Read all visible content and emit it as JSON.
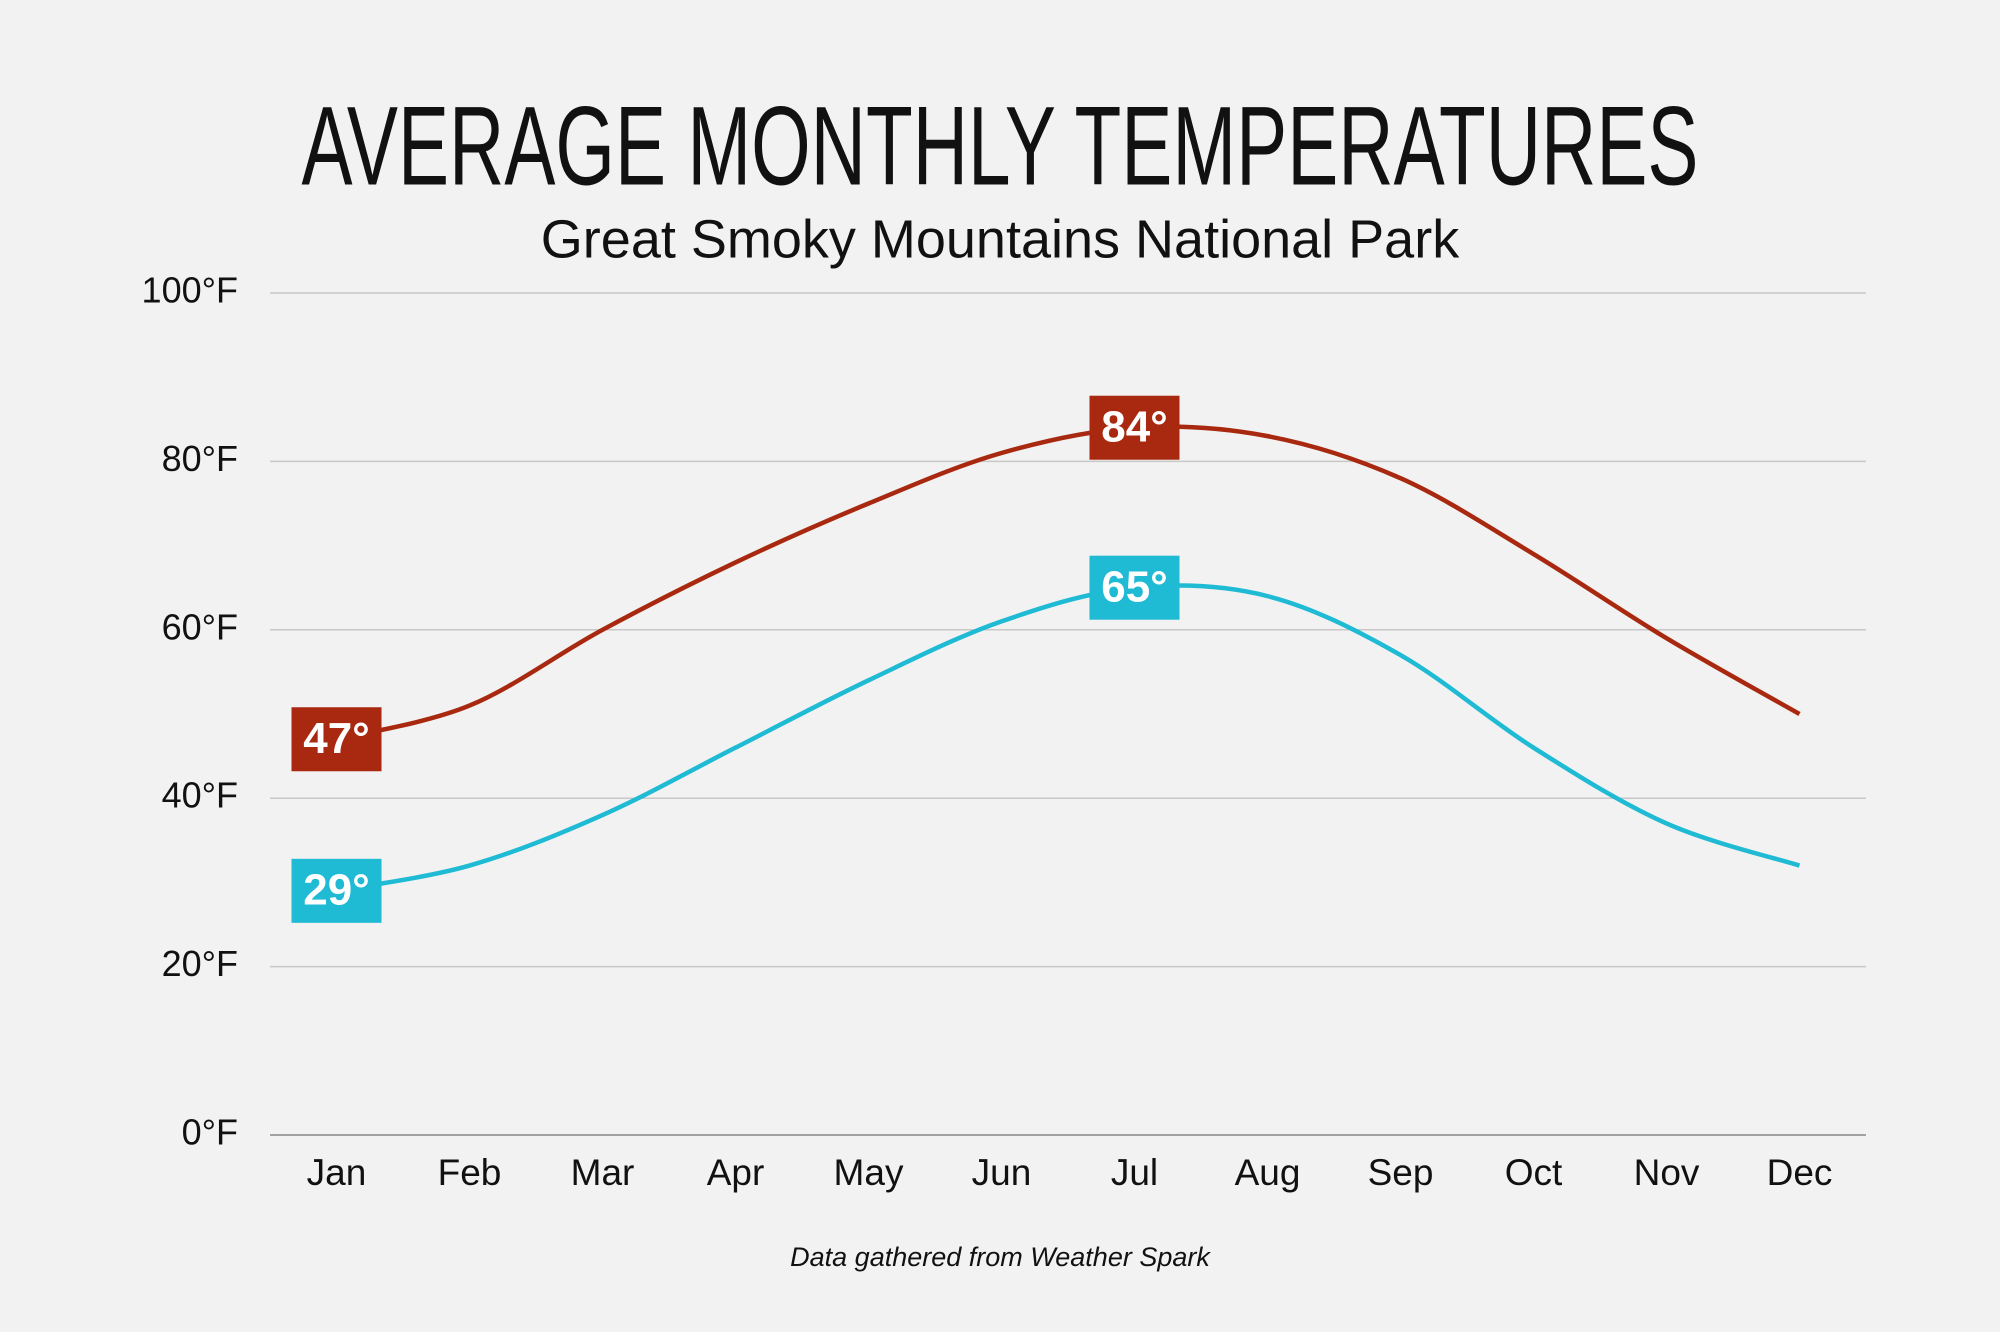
{
  "chart_data": {
    "type": "line",
    "title": "AVERAGE MONTHLY TEMPERATURES",
    "subtitle": "Great Smoky Mountains National Park",
    "footnote": "Data gathered from Weather Spark",
    "categories": [
      "Jan",
      "Feb",
      "Mar",
      "Apr",
      "May",
      "Jun",
      "Jul",
      "Aug",
      "Sep",
      "Oct",
      "Nov",
      "Dec"
    ],
    "series": [
      {
        "color": "#a8290f",
        "values": [
          47,
          51,
          60,
          68,
          75,
          81,
          84,
          83,
          78,
          69,
          59,
          50
        ],
        "value_labels": [
          "47°",
          null,
          null,
          null,
          null,
          null,
          "84°",
          null,
          null,
          null,
          null,
          null
        ]
      },
      {
        "color": "#1fbad3",
        "values": [
          29,
          32,
          38,
          46,
          54,
          61,
          65,
          64,
          57,
          46,
          37,
          32
        ],
        "value_labels": [
          "29°",
          null,
          null,
          null,
          null,
          null,
          "65°",
          null,
          null,
          null,
          null,
          null
        ]
      }
    ],
    "ylim": [
      0,
      100
    ],
    "yticks": [
      {
        "value": 0,
        "label": "0°F"
      },
      {
        "value": 20,
        "label": "20°F"
      },
      {
        "value": 40,
        "label": "40°F"
      },
      {
        "value": 60,
        "label": "60°F"
      },
      {
        "value": 80,
        "label": "80°F"
      },
      {
        "value": 100,
        "label": "100°F"
      }
    ],
    "grid": true
  }
}
